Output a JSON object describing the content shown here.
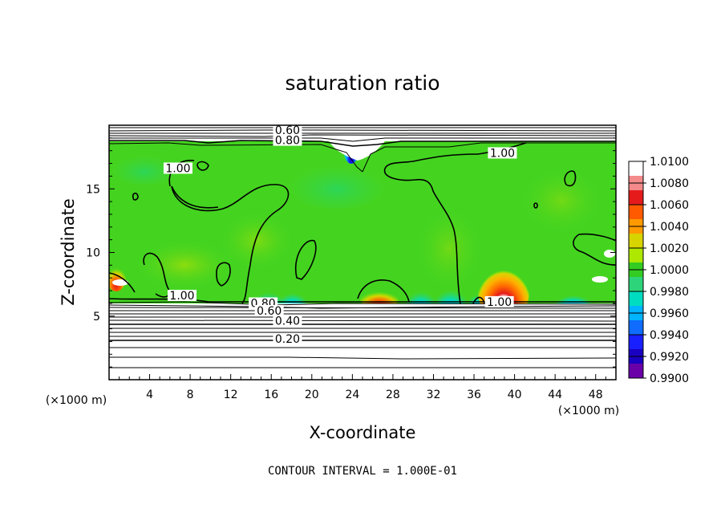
{
  "chart_data": {
    "type": "heatmap",
    "title": "saturation ratio",
    "xlabel": "X-coordinate",
    "ylabel": "Z-coordinate",
    "x_unit": "(×1000 m)",
    "z_unit": "(×1000 m)",
    "xlim": [
      0,
      50
    ],
    "ylim": [
      0,
      20
    ],
    "x_ticks": [
      4,
      8,
      12,
      16,
      20,
      24,
      28,
      32,
      36,
      40,
      44,
      48
    ],
    "y_ticks": [
      5,
      10,
      15
    ],
    "footer": "CONTOUR INTERVAL = 1.000E-01",
    "colorbar": {
      "labels": [
        "1.0100",
        "1.0080",
        "1.0060",
        "1.0040",
        "1.0020",
        "1.0000",
        "0.9980",
        "0.9960",
        "0.9940",
        "0.9920",
        "0.9900"
      ],
      "colors": [
        "#ffffff",
        "#f48a8a",
        "#e51b1b",
        "#ff5a00",
        "#ff9a00",
        "#d8d400",
        "#aee800",
        "#33cc22",
        "#2ed47a",
        "#00dcc0",
        "#00b4ff",
        "#0f6cff",
        "#1820ff",
        "#1a00c0",
        "#6a00a8"
      ]
    },
    "contour_labels": [
      {
        "text": "0.60",
        "x": 17.6,
        "z": 19.5
      },
      {
        "text": "0.80",
        "x": 17.6,
        "z": 18.7
      },
      {
        "text": "1.00",
        "x": 38.8,
        "z": 17.7
      },
      {
        "text": "1.00",
        "x": 6.8,
        "z": 16.5
      },
      {
        "text": "1.00",
        "x": 7.2,
        "z": 6.5
      },
      {
        "text": "1.00",
        "x": 38.5,
        "z": 6.0
      },
      {
        "text": "0.80",
        "x": 15.2,
        "z": 5.9
      },
      {
        "text": "0.60",
        "x": 15.8,
        "z": 5.3
      },
      {
        "text": "0.40",
        "x": 17.6,
        "z": 4.5
      },
      {
        "text": "0.20",
        "x": 17.6,
        "z": 3.1
      }
    ]
  }
}
